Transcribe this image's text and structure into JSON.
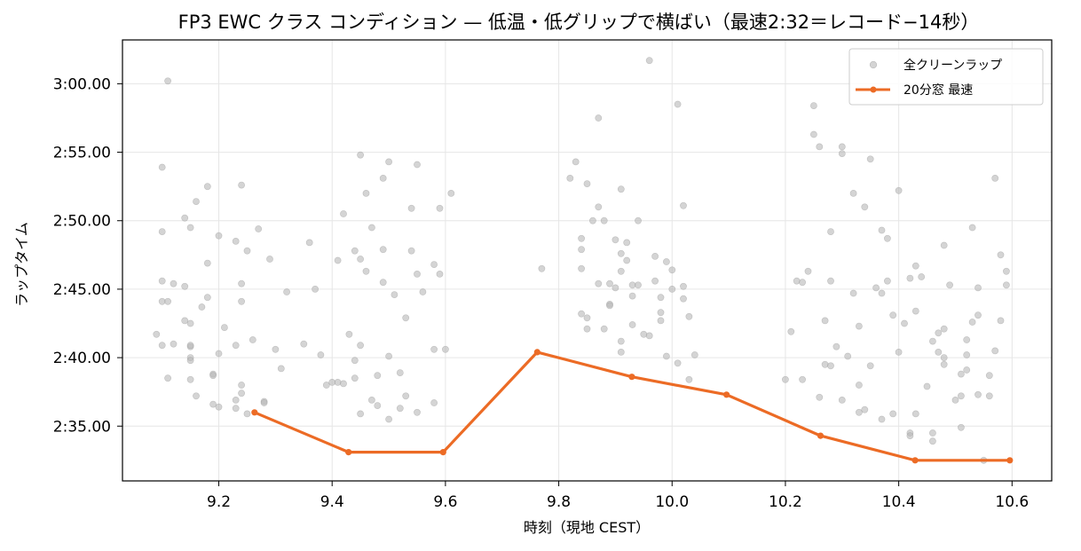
{
  "chart_data": {
    "type": "scatter",
    "title": "FP3 EWC クラス コンディション — 低温・低グリップで横ばい（最速2:32＝レコード−14秒）",
    "xlabel": "時刻（現地 CEST）",
    "ylabel": "ラップタイム",
    "xlim": [
      9.03,
      10.67
    ],
    "ylim": [
      151.0,
      183.2
    ],
    "xticks": [
      9.2,
      9.4,
      9.6,
      9.8,
      10.0,
      10.2,
      10.4,
      10.6
    ],
    "xtick_labels": [
      "9.2",
      "9.4",
      "9.6",
      "9.8",
      "10.0",
      "10.2",
      "10.4",
      "10.6"
    ],
    "yticks": [
      155,
      160,
      165,
      170,
      175,
      180
    ],
    "ytick_labels": [
      "2:35.00",
      "2:40.00",
      "2:45.00",
      "2:50.00",
      "2:55.00",
      "3:00.00"
    ],
    "grid": true,
    "legend_position": "top-right",
    "colors": {
      "scatter": "#b8b8b8",
      "line": "#ec6b25"
    },
    "series": [
      {
        "name": "全クリーンラップ",
        "kind": "scatter",
        "points": [
          [
            9.09,
            161.7
          ],
          [
            9.1,
            165.6
          ],
          [
            9.1,
            164.1
          ],
          [
            9.1,
            160.9
          ],
          [
            9.11,
            180.2
          ],
          [
            9.11,
            164.1
          ],
          [
            9.1,
            169.2
          ],
          [
            9.1,
            173.9
          ],
          [
            9.11,
            158.5
          ],
          [
            9.12,
            161.0
          ],
          [
            9.12,
            165.4
          ],
          [
            9.14,
            165.2
          ],
          [
            9.14,
            170.2
          ],
          [
            9.14,
            162.7
          ],
          [
            9.15,
            158.4
          ],
          [
            9.15,
            160.8
          ],
          [
            9.15,
            160.0
          ],
          [
            9.15,
            159.8
          ],
          [
            9.15,
            160.9
          ],
          [
            9.15,
            169.5
          ],
          [
            9.15,
            162.5
          ],
          [
            9.16,
            171.4
          ],
          [
            9.16,
            157.2
          ],
          [
            9.17,
            163.7
          ],
          [
            9.18,
            172.5
          ],
          [
            9.18,
            164.4
          ],
          [
            9.18,
            166.9
          ],
          [
            9.19,
            158.8
          ],
          [
            9.19,
            158.7
          ],
          [
            9.19,
            156.6
          ],
          [
            9.2,
            168.9
          ],
          [
            9.2,
            160.3
          ],
          [
            9.2,
            156.4
          ],
          [
            9.21,
            162.2
          ],
          [
            9.23,
            168.5
          ],
          [
            9.23,
            160.9
          ],
          [
            9.23,
            156.9
          ],
          [
            9.23,
            156.3
          ],
          [
            9.24,
            165.4
          ],
          [
            9.24,
            164.1
          ],
          [
            9.24,
            172.6
          ],
          [
            9.24,
            157.4
          ],
          [
            9.24,
            158.0
          ],
          [
            9.25,
            167.8
          ],
          [
            9.25,
            155.9
          ],
          [
            9.26,
            161.3
          ],
          [
            9.27,
            169.4
          ],
          [
            9.28,
            156.8
          ],
          [
            9.28,
            156.7
          ],
          [
            9.29,
            167.2
          ],
          [
            9.3,
            160.6
          ],
          [
            9.31,
            159.2
          ],
          [
            9.32,
            164.8
          ],
          [
            9.35,
            161.0
          ],
          [
            9.36,
            168.4
          ],
          [
            9.37,
            165.0
          ],
          [
            9.38,
            160.2
          ],
          [
            9.39,
            158.0
          ],
          [
            9.4,
            158.2
          ],
          [
            9.41,
            167.1
          ],
          [
            9.41,
            158.2
          ],
          [
            9.42,
            170.5
          ],
          [
            9.42,
            158.1
          ],
          [
            9.43,
            161.7
          ],
          [
            9.44,
            167.8
          ],
          [
            9.44,
            159.8
          ],
          [
            9.44,
            158.5
          ],
          [
            9.45,
            174.8
          ],
          [
            9.45,
            167.2
          ],
          [
            9.45,
            160.9
          ],
          [
            9.45,
            155.9
          ],
          [
            9.46,
            166.3
          ],
          [
            9.46,
            172.0
          ],
          [
            9.47,
            156.9
          ],
          [
            9.47,
            169.5
          ],
          [
            9.48,
            158.7
          ],
          [
            9.48,
            156.5
          ],
          [
            9.49,
            173.1
          ],
          [
            9.49,
            167.9
          ],
          [
            9.49,
            165.5
          ],
          [
            9.5,
            155.5
          ],
          [
            9.5,
            174.3
          ],
          [
            9.5,
            160.1
          ],
          [
            9.51,
            164.6
          ],
          [
            9.52,
            158.9
          ],
          [
            9.52,
            156.3
          ],
          [
            9.53,
            162.9
          ],
          [
            9.53,
            157.2
          ],
          [
            9.54,
            167.8
          ],
          [
            9.54,
            170.9
          ],
          [
            9.55,
            174.1
          ],
          [
            9.55,
            166.1
          ],
          [
            9.55,
            156.0
          ],
          [
            9.56,
            164.8
          ],
          [
            9.58,
            166.8
          ],
          [
            9.58,
            160.6
          ],
          [
            9.58,
            156.7
          ],
          [
            9.59,
            166.1
          ],
          [
            9.59,
            170.9
          ],
          [
            9.6,
            160.6
          ],
          [
            9.61,
            172.0
          ],
          [
            9.77,
            166.5
          ],
          [
            9.82,
            173.1
          ],
          [
            9.83,
            174.3
          ],
          [
            9.84,
            166.5
          ],
          [
            9.84,
            168.7
          ],
          [
            9.84,
            167.9
          ],
          [
            9.84,
            163.2
          ],
          [
            9.85,
            172.7
          ],
          [
            9.85,
            162.9
          ],
          [
            9.85,
            162.1
          ],
          [
            9.86,
            170.0
          ],
          [
            9.87,
            165.4
          ],
          [
            9.87,
            177.5
          ],
          [
            9.87,
            171.0
          ],
          [
            9.88,
            170.0
          ],
          [
            9.88,
            162.1
          ],
          [
            9.89,
            165.4
          ],
          [
            9.89,
            163.9
          ],
          [
            9.89,
            163.8
          ],
          [
            9.9,
            168.6
          ],
          [
            9.9,
            165.1
          ],
          [
            9.91,
            172.3
          ],
          [
            9.91,
            167.6
          ],
          [
            9.91,
            166.3
          ],
          [
            9.91,
            161.2
          ],
          [
            9.91,
            160.4
          ],
          [
            9.92,
            168.4
          ],
          [
            9.92,
            167.1
          ],
          [
            9.93,
            164.5
          ],
          [
            9.93,
            162.4
          ],
          [
            9.93,
            165.3
          ],
          [
            9.94,
            170.0
          ],
          [
            9.94,
            165.3
          ],
          [
            9.95,
            161.7
          ],
          [
            9.96,
            181.7
          ],
          [
            9.96,
            161.6
          ],
          [
            9.97,
            167.4
          ],
          [
            9.97,
            165.6
          ],
          [
            9.98,
            164.4
          ],
          [
            9.98,
            163.3
          ],
          [
            9.98,
            162.7
          ],
          [
            9.99,
            167.0
          ],
          [
            9.99,
            160.1
          ],
          [
            10.0,
            165.0
          ],
          [
            10.0,
            166.4
          ],
          [
            10.01,
            159.6
          ],
          [
            10.01,
            178.5
          ],
          [
            10.02,
            171.1
          ],
          [
            10.02,
            165.2
          ],
          [
            10.02,
            164.3
          ],
          [
            10.03,
            163.0
          ],
          [
            10.03,
            158.4
          ],
          [
            10.04,
            160.2
          ],
          [
            10.2,
            158.4
          ],
          [
            10.21,
            161.9
          ],
          [
            10.22,
            165.6
          ],
          [
            10.23,
            165.5
          ],
          [
            10.23,
            158.4
          ],
          [
            10.24,
            166.3
          ],
          [
            10.25,
            178.4
          ],
          [
            10.25,
            176.3
          ],
          [
            10.26,
            175.4
          ],
          [
            10.26,
            157.1
          ],
          [
            10.27,
            162.7
          ],
          [
            10.27,
            159.5
          ],
          [
            10.28,
            165.6
          ],
          [
            10.28,
            159.4
          ],
          [
            10.28,
            169.2
          ],
          [
            10.29,
            160.8
          ],
          [
            10.3,
            174.9
          ],
          [
            10.3,
            175.4
          ],
          [
            10.3,
            156.9
          ],
          [
            10.31,
            160.1
          ],
          [
            10.32,
            172.0
          ],
          [
            10.32,
            164.7
          ],
          [
            10.33,
            162.3
          ],
          [
            10.33,
            156.0
          ],
          [
            10.33,
            158.0
          ],
          [
            10.34,
            171.0
          ],
          [
            10.34,
            156.2
          ],
          [
            10.35,
            159.4
          ],
          [
            10.35,
            174.5
          ],
          [
            10.36,
            165.1
          ],
          [
            10.37,
            169.3
          ],
          [
            10.37,
            164.7
          ],
          [
            10.37,
            155.5
          ],
          [
            10.38,
            168.7
          ],
          [
            10.38,
            165.6
          ],
          [
            10.39,
            163.1
          ],
          [
            10.39,
            155.9
          ],
          [
            10.4,
            172.2
          ],
          [
            10.4,
            160.4
          ],
          [
            10.41,
            162.5
          ],
          [
            10.42,
            165.8
          ],
          [
            10.42,
            154.5
          ],
          [
            10.42,
            154.3
          ],
          [
            10.43,
            166.7
          ],
          [
            10.43,
            163.4
          ],
          [
            10.43,
            155.9
          ],
          [
            10.44,
            165.9
          ],
          [
            10.45,
            157.9
          ],
          [
            10.46,
            161.2
          ],
          [
            10.46,
            154.5
          ],
          [
            10.46,
            153.9
          ],
          [
            10.47,
            160.4
          ],
          [
            10.47,
            161.8
          ],
          [
            10.48,
            162.1
          ],
          [
            10.48,
            168.2
          ],
          [
            10.48,
            160.0
          ],
          [
            10.48,
            159.5
          ],
          [
            10.49,
            165.3
          ],
          [
            10.5,
            156.9
          ],
          [
            10.51,
            157.2
          ],
          [
            10.51,
            154.9
          ],
          [
            10.51,
            158.8
          ],
          [
            10.52,
            161.3
          ],
          [
            10.52,
            160.2
          ],
          [
            10.52,
            159.1
          ],
          [
            10.53,
            162.6
          ],
          [
            10.53,
            169.5
          ],
          [
            10.54,
            165.1
          ],
          [
            10.54,
            157.3
          ],
          [
            10.54,
            163.1
          ],
          [
            10.55,
            152.5
          ],
          [
            10.56,
            157.2
          ],
          [
            10.56,
            158.7
          ],
          [
            10.57,
            173.1
          ],
          [
            10.57,
            160.5
          ],
          [
            10.58,
            167.5
          ],
          [
            10.58,
            162.7
          ],
          [
            10.59,
            166.3
          ],
          [
            10.59,
            165.3
          ]
        ]
      },
      {
        "name": "20分窓 最速",
        "kind": "line",
        "points": [
          [
            9.263,
            156.0
          ],
          [
            9.429,
            153.1
          ],
          [
            9.596,
            153.1
          ],
          [
            9.762,
            160.4
          ],
          [
            9.929,
            158.6
          ],
          [
            10.096,
            157.3
          ],
          [
            10.262,
            154.3
          ],
          [
            10.429,
            152.5
          ],
          [
            10.596,
            152.5
          ]
        ]
      }
    ]
  }
}
